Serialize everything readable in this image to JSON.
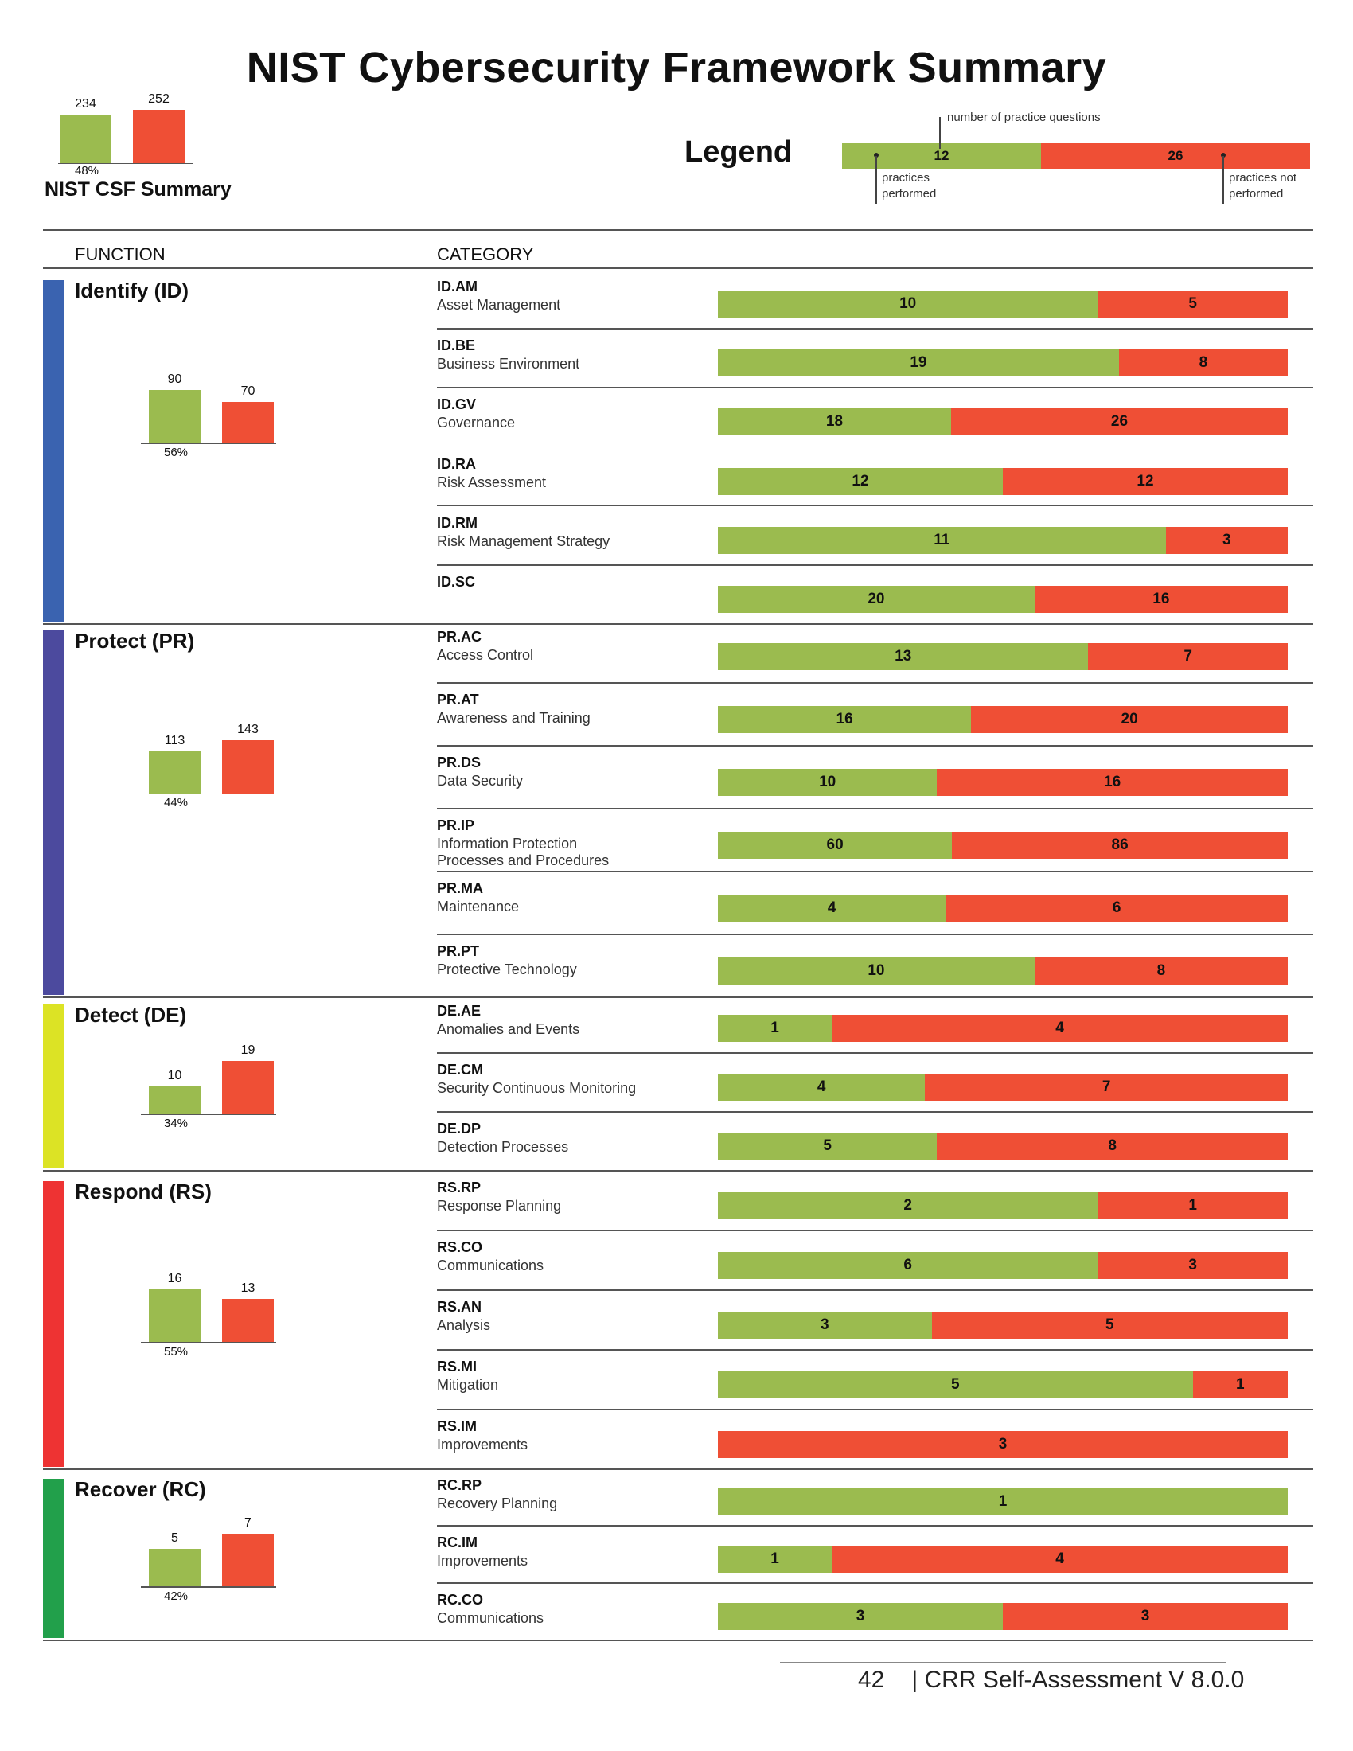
{
  "title": "NIST Cybersecurity Framework Summary",
  "summary": {
    "label": "NIST CSF Summary",
    "performed": 234,
    "not_performed": 252,
    "percent": "48%"
  },
  "legend": {
    "title": "Legend",
    "example_performed": 12,
    "example_not_performed": 26,
    "note_questions": "number of practice questions",
    "note_performed": "practices performed",
    "note_not_performed": "practices not performed"
  },
  "headers": {
    "function": "FUNCTION",
    "category": "CATEGORY"
  },
  "colors": {
    "performed": "#9bbb4f",
    "not_performed": "#ef4f35"
  },
  "footer": {
    "page": "42",
    "title": "| CRR Self-Assessment V 8.0.0"
  },
  "chart_data": {
    "type": "bar",
    "stacked": true,
    "orientation": "horizontal",
    "series_names": [
      "practices performed",
      "practices not performed"
    ],
    "functions": [
      {
        "name": "Identify (ID)",
        "color": "#3a63b0",
        "performed": 90,
        "not_performed": 70,
        "percent": "56%",
        "categories": [
          {
            "code": "ID.AM",
            "name": "Asset Management",
            "performed": 10,
            "not_performed": 5
          },
          {
            "code": "ID.BE",
            "name": "Business Environment",
            "performed": 19,
            "not_performed": 8
          },
          {
            "code": "ID.GV",
            "name": "Governance",
            "performed": 18,
            "not_performed": 26
          },
          {
            "code": "ID.RA",
            "name": "Risk Assessment",
            "performed": 12,
            "not_performed": 12
          },
          {
            "code": "ID.RM",
            "name": "Risk Management Strategy",
            "performed": 11,
            "not_performed": 3
          },
          {
            "code": "ID.SC",
            "name": "",
            "performed": 20,
            "not_performed": 16
          }
        ]
      },
      {
        "name": "Protect (PR)",
        "color": "#4c4a9e",
        "performed": 113,
        "not_performed": 143,
        "percent": "44%",
        "categories": [
          {
            "code": "PR.AC",
            "name": "Access Control",
            "performed": 13,
            "not_performed": 7
          },
          {
            "code": "PR.AT",
            "name": "Awareness and Training",
            "performed": 16,
            "not_performed": 20
          },
          {
            "code": "PR.DS",
            "name": "Data Security",
            "performed": 10,
            "not_performed": 16
          },
          {
            "code": "PR.IP",
            "name": "Information Protection",
            "name2": "Processes and Procedures",
            "performed": 60,
            "not_performed": 86
          },
          {
            "code": "PR.MA",
            "name": "Maintenance",
            "performed": 4,
            "not_performed": 6
          },
          {
            "code": "PR.PT",
            "name": "Protective Technology",
            "performed": 10,
            "not_performed": 8
          }
        ]
      },
      {
        "name": "Detect (DE)",
        "color": "#dce325",
        "performed": 10,
        "not_performed": 19,
        "percent": "34%",
        "categories": [
          {
            "code": "DE.AE",
            "name": "Anomalies and Events",
            "performed": 1,
            "not_performed": 4
          },
          {
            "code": "DE.CM",
            "name": "Security Continuous Monitoring",
            "performed": 4,
            "not_performed": 7
          },
          {
            "code": "DE.DP",
            "name": "Detection Processes",
            "performed": 5,
            "not_performed": 8
          }
        ]
      },
      {
        "name": "Respond (RS)",
        "color": "#ee3333",
        "performed": 16,
        "not_performed": 13,
        "percent": "55%",
        "categories": [
          {
            "code": "RS.RP",
            "name": "Response Planning",
            "performed": 2,
            "not_performed": 1
          },
          {
            "code": "RS.CO",
            "name": "Communications",
            "performed": 6,
            "not_performed": 3
          },
          {
            "code": "RS.AN",
            "name": "Analysis",
            "performed": 3,
            "not_performed": 5
          },
          {
            "code": "RS.MI",
            "name": "Mitigation",
            "performed": 5,
            "not_performed": 1
          },
          {
            "code": "RS.IM",
            "name": "Improvements",
            "performed": 0,
            "not_performed": 3
          }
        ]
      },
      {
        "name": "Recover (RC)",
        "color": "#22a04b",
        "performed": 5,
        "not_performed": 7,
        "percent": "42%",
        "categories": [
          {
            "code": "RC.RP",
            "name": "Recovery Planning",
            "performed": 1,
            "not_performed": 0
          },
          {
            "code": "RC.IM",
            "name": "Improvements",
            "performed": 1,
            "not_performed": 4
          },
          {
            "code": "RC.CO",
            "name": "Communications",
            "performed": 3,
            "not_performed": 3
          }
        ]
      }
    ]
  }
}
